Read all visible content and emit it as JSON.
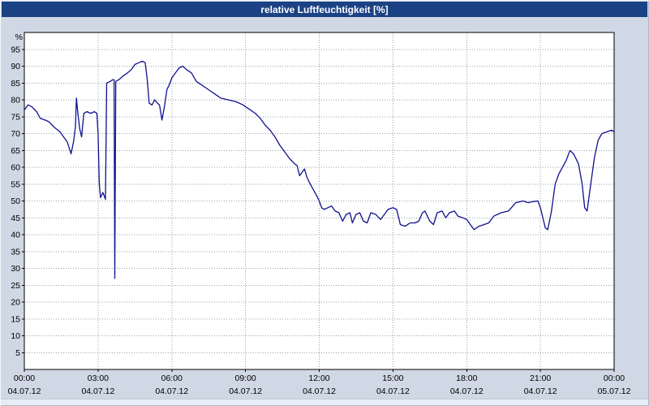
{
  "window": {
    "title": "relative Luftfeuchtigkeit [%]"
  },
  "colors": {
    "titlebar_bg": "#1b4284",
    "titlebar_text": "#ffffff",
    "outer_bg": "#cfd8e4",
    "plot_bg": "#ffffff",
    "plot_border": "#000000",
    "grid": "#9aa0a6",
    "axis_text": "#000000",
    "line": "#10108e"
  },
  "chart_data": {
    "type": "line",
    "title": "relative Luftfeuchtigkeit [%]",
    "ylabel": "%",
    "ylim": [
      0,
      100
    ],
    "y_ticks": [
      95,
      90,
      85,
      80,
      75,
      70,
      65,
      60,
      55,
      50,
      45,
      40,
      35,
      30,
      25,
      20,
      15,
      10,
      5
    ],
    "x_range_hours": [
      0,
      24
    ],
    "x_ticks": [
      {
        "hour": 0,
        "time": "00:00",
        "date": "04.07.12"
      },
      {
        "hour": 3,
        "time": "03:00",
        "date": "04.07.12"
      },
      {
        "hour": 6,
        "time": "06:00",
        "date": "04.07.12"
      },
      {
        "hour": 9,
        "time": "09:00",
        "date": "04.07.12"
      },
      {
        "hour": 12,
        "time": "12:00",
        "date": "04.07.12"
      },
      {
        "hour": 15,
        "time": "15:00",
        "date": "04.07.12"
      },
      {
        "hour": 18,
        "time": "18:00",
        "date": "04.07.12"
      },
      {
        "hour": 21,
        "time": "21:00",
        "date": "04.07.12"
      },
      {
        "hour": 24,
        "time": "00:00",
        "date": "05.07.12"
      }
    ],
    "grid": true,
    "legend": "none",
    "series": [
      {
        "name": "relative Luftfeuchtigkeit [%]",
        "color": "#10108e",
        "points": [
          [
            0,
            77
          ],
          [
            0.15,
            78.5
          ],
          [
            0.3,
            78
          ],
          [
            0.5,
            76.5
          ],
          [
            0.65,
            74.5
          ],
          [
            0.85,
            74
          ],
          [
            1,
            73.5
          ],
          [
            1.2,
            72
          ],
          [
            1.45,
            70.5
          ],
          [
            1.6,
            69
          ],
          [
            1.75,
            67.5
          ],
          [
            1.9,
            64
          ],
          [
            2,
            67.5
          ],
          [
            2.08,
            72
          ],
          [
            2.12,
            80.5
          ],
          [
            2.18,
            76
          ],
          [
            2.25,
            71.5
          ],
          [
            2.33,
            69
          ],
          [
            2.42,
            76
          ],
          [
            2.55,
            76.5
          ],
          [
            2.7,
            76
          ],
          [
            2.85,
            76.5
          ],
          [
            2.95,
            76
          ],
          [
            3,
            70
          ],
          [
            3.05,
            55
          ],
          [
            3.1,
            51
          ],
          [
            3.2,
            52.5
          ],
          [
            3.3,
            50.5
          ],
          [
            3.35,
            85
          ],
          [
            3.5,
            85.5
          ],
          [
            3.6,
            86
          ],
          [
            3.65,
            86
          ],
          [
            3.68,
            27
          ],
          [
            3.72,
            85.5
          ],
          [
            3.85,
            86
          ],
          [
            4,
            87
          ],
          [
            4.2,
            88
          ],
          [
            4.35,
            89
          ],
          [
            4.5,
            90.5
          ],
          [
            4.65,
            91
          ],
          [
            4.8,
            91.5
          ],
          [
            4.92,
            91
          ],
          [
            5,
            86
          ],
          [
            5.08,
            79
          ],
          [
            5.2,
            78.5
          ],
          [
            5.3,
            80
          ],
          [
            5.42,
            79
          ],
          [
            5.5,
            78.5
          ],
          [
            5.6,
            74
          ],
          [
            5.7,
            78
          ],
          [
            5.8,
            83
          ],
          [
            5.9,
            84.5
          ],
          [
            6,
            86.5
          ],
          [
            6.15,
            88
          ],
          [
            6.3,
            89.5
          ],
          [
            6.45,
            90
          ],
          [
            6.6,
            89
          ],
          [
            6.8,
            88
          ],
          [
            7,
            85.5
          ],
          [
            7.2,
            84.5
          ],
          [
            7.4,
            83.5
          ],
          [
            7.6,
            82.5
          ],
          [
            7.8,
            81.5
          ],
          [
            8,
            80.5
          ],
          [
            8.3,
            80
          ],
          [
            8.6,
            79.5
          ],
          [
            8.9,
            78.5
          ],
          [
            9,
            78
          ],
          [
            9.2,
            77
          ],
          [
            9.4,
            76
          ],
          [
            9.6,
            74.5
          ],
          [
            9.8,
            72.5
          ],
          [
            10,
            71
          ],
          [
            10.2,
            69
          ],
          [
            10.4,
            66.5
          ],
          [
            10.6,
            64.5
          ],
          [
            10.8,
            62.5
          ],
          [
            11,
            61
          ],
          [
            11.1,
            60.5
          ],
          [
            11.2,
            57.5
          ],
          [
            11.3,
            58.5
          ],
          [
            11.4,
            59.5
          ],
          [
            11.5,
            57
          ],
          [
            11.6,
            55.5
          ],
          [
            11.75,
            53.5
          ],
          [
            11.9,
            51.5
          ],
          [
            12,
            50
          ],
          [
            12.1,
            48
          ],
          [
            12.2,
            47.5
          ],
          [
            12.35,
            48
          ],
          [
            12.5,
            48.5
          ],
          [
            12.65,
            47
          ],
          [
            12.8,
            46.5
          ],
          [
            12.95,
            44
          ],
          [
            13.1,
            46
          ],
          [
            13.25,
            46.5
          ],
          [
            13.35,
            43.5
          ],
          [
            13.5,
            46
          ],
          [
            13.65,
            46.5
          ],
          [
            13.8,
            44
          ],
          [
            13.95,
            43.5
          ],
          [
            14.1,
            46.5
          ],
          [
            14.3,
            46
          ],
          [
            14.5,
            44.5
          ],
          [
            14.65,
            46
          ],
          [
            14.8,
            47.5
          ],
          [
            15,
            48
          ],
          [
            15.15,
            47.5
          ],
          [
            15.3,
            43
          ],
          [
            15.5,
            42.5
          ],
          [
            15.7,
            43.5
          ],
          [
            15.9,
            43.5
          ],
          [
            16.05,
            44
          ],
          [
            16.2,
            46.5
          ],
          [
            16.3,
            47
          ],
          [
            16.5,
            44
          ],
          [
            16.65,
            43
          ],
          [
            16.8,
            46.5
          ],
          [
            17,
            47
          ],
          [
            17.15,
            45
          ],
          [
            17.3,
            46.5
          ],
          [
            17.5,
            47
          ],
          [
            17.65,
            45.5
          ],
          [
            17.85,
            45
          ],
          [
            18,
            44.5
          ],
          [
            18.15,
            43
          ],
          [
            18.3,
            41.5
          ],
          [
            18.5,
            42.5
          ],
          [
            18.7,
            43
          ],
          [
            18.9,
            43.5
          ],
          [
            19.1,
            45.5
          ],
          [
            19.4,
            46.5
          ],
          [
            19.7,
            47
          ],
          [
            20,
            49.5
          ],
          [
            20.3,
            50
          ],
          [
            20.5,
            49.5
          ],
          [
            20.7,
            49.8
          ],
          [
            20.9,
            50
          ],
          [
            21,
            48
          ],
          [
            21.1,
            45
          ],
          [
            21.2,
            42
          ],
          [
            21.3,
            41.5
          ],
          [
            21.45,
            47
          ],
          [
            21.6,
            55
          ],
          [
            21.75,
            58
          ],
          [
            21.9,
            60
          ],
          [
            22.05,
            62
          ],
          [
            22.2,
            65
          ],
          [
            22.35,
            64
          ],
          [
            22.55,
            61
          ],
          [
            22.7,
            55
          ],
          [
            22.8,
            48
          ],
          [
            22.9,
            47
          ],
          [
            23.05,
            55
          ],
          [
            23.2,
            63
          ],
          [
            23.35,
            68
          ],
          [
            23.5,
            70
          ],
          [
            23.7,
            70.5
          ],
          [
            23.9,
            71
          ],
          [
            24,
            70.5
          ]
        ]
      }
    ]
  }
}
